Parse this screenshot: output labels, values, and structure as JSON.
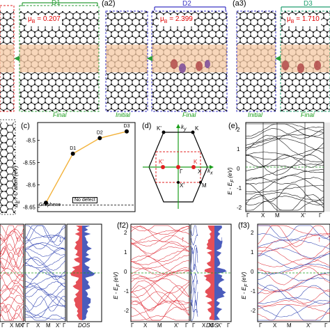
{
  "figure": {
    "top_row": {
      "panels": [
        {
          "label": "(a2)",
          "defect": "D2",
          "mu": "μ",
          "mu_sub": "B",
          "mu_value": " = 2.399",
          "initial": "Initial",
          "final": "Final"
        },
        {
          "label": "(a3)",
          "defect": "D3",
          "mu": "μ",
          "mu_sub": "B",
          "mu_value": " = 1.710",
          "initial": "Initial",
          "final": "Final"
        }
      ],
      "first": {
        "defect": "D1",
        "mu": "μ",
        "mu_sub": "B",
        "mu_value": " = 0.207",
        "final": "Final"
      }
    },
    "panel_c": {
      "label": "(c)",
      "ylabel": "Δ",
      "ylabel_sub": "E",
      "ylabel_rest": " / C atom (eV)",
      "graphene_label": "Graphene",
      "no_defect_label": "No defect",
      "yticks": [
        "-8.5",
        "-8.55",
        "-8.6",
        "-8.65"
      ]
    },
    "panel_d": {
      "label": "(d)",
      "ky": "k",
      "ky_sub": "y",
      "kx": "k",
      "kx_sub": "x",
      "points": {
        "K_prime_top": "K'",
        "K_top": "K",
        "K_prime_in": "K'",
        "K_in": "K",
        "Gamma": "Γ",
        "X": "X",
        "X_prime": "X'",
        "M": "M"
      }
    },
    "panel_e": {
      "label": "(e)",
      "ylabel": "E - E",
      "ylabel_sub": "F",
      "ylabel_rest": " (eV)",
      "yticks": [
        "2",
        "1",
        "0",
        "-1",
        "-2"
      ],
      "xticks": [
        "Γ",
        "X",
        "M",
        "X'",
        "Γ"
      ]
    },
    "bottom_row": {
      "f1": {
        "xticks": [
          "Γ",
          "X",
          "M",
          "X'",
          "Γ",
          "Γ",
          "X",
          "M",
          "X'",
          "Γ"
        ],
        "dos": "DOS"
      },
      "f2": {
        "label": "(f2)",
        "ylabel": "E - E",
        "ylabel_sub": "F",
        "ylabel_rest": " (eV)",
        "yticks": [
          "2",
          "1",
          "0",
          "-1",
          "-2"
        ],
        "xticks": [
          "Γ",
          "X",
          "M",
          "X'",
          "Γ",
          "Γ",
          "X",
          "M",
          "X'",
          "Γ"
        ],
        "dos": "DOS"
      },
      "f3": {
        "label": "(f3)",
        "ylabel": "E - E",
        "ylabel_sub": "F",
        "ylabel_rest": " (eV)",
        "yticks": [
          "2",
          "1",
          "0",
          "-1",
          "-2"
        ],
        "xticks": [
          "Γ",
          "X",
          "M",
          "X'",
          "Γ"
        ]
      }
    },
    "colors": {
      "spin_up": "#e0303a",
      "spin_down": "#2b3fb0",
      "highlight_band": "#f6c9a4",
      "d1_frame": "#2e9e3a",
      "d2_frame": "#3a34c4",
      "d3_frame": "#1e9e6e",
      "initial_frame_red": "#e02020",
      "curve_orange": "#f3b23a",
      "fermi_green": "#1b9e1b"
    }
  },
  "chart_data": {
    "type": "scatter",
    "title": "",
    "xlabel": "",
    "ylabel": "ΔE / C atom (eV)",
    "x": [
      "Graphene",
      "D1",
      "D2",
      "D3"
    ],
    "values": [
      -8.64,
      -8.53,
      -8.495,
      -8.48
    ],
    "ylim": [
      -8.66,
      -8.46
    ],
    "reference_line": {
      "value": -8.645,
      "label": "No defect"
    }
  }
}
